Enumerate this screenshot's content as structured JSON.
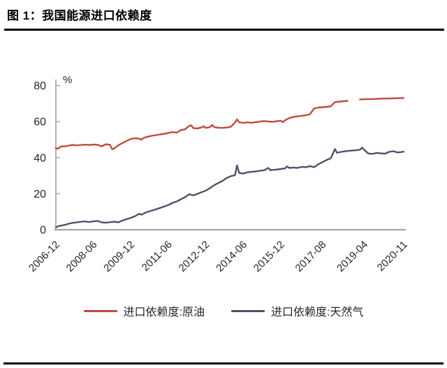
{
  "header": {
    "title": "图 1：我国能源进口依赖度"
  },
  "chart_data": {
    "type": "line",
    "title": "图 1：我国能源进口依赖度",
    "unit_label": "%",
    "ylabel": "%",
    "xlabel": "",
    "ylim": [
      0,
      80
    ],
    "y_ticks": [
      0,
      20,
      40,
      60,
      80
    ],
    "x_range_months": [
      0,
      167
    ],
    "x_ticks": [
      {
        "label": "2006-12",
        "month": 0
      },
      {
        "label": "2008-06",
        "month": 18
      },
      {
        "label": "2009-12",
        "month": 36
      },
      {
        "label": "2011-06",
        "month": 54
      },
      {
        "label": "2012-12",
        "month": 72
      },
      {
        "label": "2014-06",
        "month": 90
      },
      {
        "label": "2015-12",
        "month": 108
      },
      {
        "label": "2017-08",
        "month": 128
      },
      {
        "label": "2019-04",
        "month": 148
      },
      {
        "label": "2020-11",
        "month": 167
      }
    ],
    "grid": false,
    "legend_position": "bottom",
    "axis_color": "#a6a6a6",
    "series": [
      {
        "key": "crude-oil",
        "name": "进口依赖度:原油",
        "color": "#bf4a3d",
        "points": [
          [
            0,
            45.3
          ],
          [
            1,
            44.9
          ],
          [
            2,
            45.9
          ],
          [
            3,
            46.3
          ],
          [
            4,
            46.2
          ],
          [
            6,
            46.6
          ],
          [
            8,
            47.1
          ],
          [
            10,
            46.8
          ],
          [
            12,
            47.0
          ],
          [
            14,
            47.2
          ],
          [
            16,
            47.0
          ],
          [
            18,
            47.3
          ],
          [
            20,
            47.1
          ],
          [
            22,
            46.3
          ],
          [
            24,
            47.4
          ],
          [
            26,
            47.1
          ],
          [
            27,
            44.7
          ],
          [
            28,
            45.1
          ],
          [
            30,
            46.9
          ],
          [
            32,
            48.1
          ],
          [
            34,
            49.3
          ],
          [
            36,
            50.4
          ],
          [
            38,
            50.8
          ],
          [
            40,
            50.5
          ],
          [
            41,
            49.9
          ],
          [
            42,
            50.9
          ],
          [
            44,
            51.6
          ],
          [
            46,
            52.1
          ],
          [
            48,
            52.5
          ],
          [
            50,
            52.9
          ],
          [
            52,
            53.2
          ],
          [
            54,
            53.7
          ],
          [
            56,
            54.2
          ],
          [
            58,
            53.8
          ],
          [
            60,
            55.3
          ],
          [
            62,
            55.7
          ],
          [
            64,
            57.6
          ],
          [
            65,
            57.9
          ],
          [
            66,
            56.4
          ],
          [
            68,
            56.2
          ],
          [
            70,
            56.8
          ],
          [
            71,
            57.4
          ],
          [
            72,
            56.5
          ],
          [
            74,
            56.9
          ],
          [
            75,
            58.1
          ],
          [
            76,
            57.0
          ],
          [
            78,
            56.6
          ],
          [
            80,
            56.5
          ],
          [
            82,
            56.7
          ],
          [
            84,
            57.1
          ],
          [
            86,
            59.5
          ],
          [
            87,
            61.2
          ],
          [
            88,
            59.6
          ],
          [
            90,
            59.3
          ],
          [
            92,
            59.6
          ],
          [
            94,
            59.4
          ],
          [
            96,
            59.7
          ],
          [
            98,
            60.0
          ],
          [
            100,
            60.3
          ],
          [
            102,
            60.1
          ],
          [
            104,
            59.8
          ],
          [
            106,
            60.2
          ],
          [
            108,
            60.4
          ],
          [
            109,
            59.7
          ],
          [
            110,
            60.7
          ],
          [
            112,
            61.9
          ],
          [
            114,
            62.6
          ],
          [
            116,
            62.9
          ],
          [
            118,
            63.2
          ],
          [
            120,
            63.5
          ],
          [
            122,
            64.1
          ],
          [
            124,
            67.3
          ],
          [
            126,
            67.8
          ],
          [
            128,
            68.0
          ],
          [
            130,
            68.2
          ],
          [
            132,
            68.5
          ],
          [
            134,
            70.8
          ],
          [
            136,
            71.1
          ],
          [
            138,
            71.3
          ],
          [
            140,
            71.5
          ],
          [
            142,
            null
          ],
          [
            144,
            null
          ],
          [
            146,
            72.3
          ],
          [
            148,
            72.4
          ],
          [
            150,
            72.5
          ],
          [
            152,
            72.5
          ],
          [
            154,
            72.6
          ],
          [
            156,
            72.7
          ],
          [
            158,
            72.8
          ],
          [
            160,
            72.8
          ],
          [
            162,
            72.9
          ],
          [
            164,
            73.0
          ],
          [
            166,
            73.0
          ],
          [
            167,
            73.1
          ]
        ]
      },
      {
        "key": "natural-gas",
        "name": "进口依赖度:天然气",
        "color": "#4d5469",
        "points": [
          [
            0,
            1.4
          ],
          [
            2,
            2.2
          ],
          [
            4,
            2.6
          ],
          [
            6,
            3.3
          ],
          [
            8,
            3.8
          ],
          [
            10,
            4.1
          ],
          [
            12,
            4.4
          ],
          [
            14,
            4.6
          ],
          [
            16,
            4.3
          ],
          [
            18,
            4.7
          ],
          [
            20,
            4.9
          ],
          [
            22,
            4.1
          ],
          [
            24,
            3.9
          ],
          [
            26,
            4.2
          ],
          [
            28,
            4.5
          ],
          [
            30,
            4.1
          ],
          [
            32,
            5.1
          ],
          [
            34,
            5.9
          ],
          [
            36,
            6.6
          ],
          [
            38,
            7.5
          ],
          [
            40,
            8.9
          ],
          [
            41,
            8.3
          ],
          [
            42,
            8.9
          ],
          [
            44,
            9.9
          ],
          [
            46,
            10.6
          ],
          [
            48,
            11.3
          ],
          [
            50,
            12.1
          ],
          [
            52,
            12.9
          ],
          [
            54,
            13.7
          ],
          [
            56,
            14.9
          ],
          [
            58,
            15.7
          ],
          [
            60,
            16.9
          ],
          [
            62,
            18.1
          ],
          [
            64,
            19.7
          ],
          [
            66,
            19.1
          ],
          [
            68,
            19.9
          ],
          [
            70,
            20.9
          ],
          [
            72,
            21.7
          ],
          [
            74,
            23.1
          ],
          [
            76,
            24.7
          ],
          [
            78,
            25.9
          ],
          [
            80,
            27.1
          ],
          [
            82,
            28.7
          ],
          [
            84,
            29.7
          ],
          [
            86,
            30.3
          ],
          [
            87,
            35.7
          ],
          [
            88,
            31.5
          ],
          [
            90,
            31.2
          ],
          [
            92,
            31.9
          ],
          [
            94,
            32.1
          ],
          [
            96,
            32.4
          ],
          [
            98,
            32.7
          ],
          [
            100,
            33.0
          ],
          [
            102,
            34.3
          ],
          [
            103,
            33.0
          ],
          [
            104,
            33.2
          ],
          [
            106,
            33.4
          ],
          [
            108,
            33.7
          ],
          [
            110,
            34.0
          ],
          [
            111,
            35.1
          ],
          [
            112,
            34.3
          ],
          [
            114,
            34.5
          ],
          [
            116,
            34.3
          ],
          [
            118,
            34.9
          ],
          [
            120,
            34.7
          ],
          [
            122,
            35.3
          ],
          [
            124,
            34.7
          ],
          [
            126,
            36.3
          ],
          [
            128,
            37.5
          ],
          [
            130,
            38.7
          ],
          [
            132,
            39.7
          ],
          [
            134,
            44.8
          ],
          [
            135,
            42.7
          ],
          [
            136,
            43.0
          ],
          [
            138,
            43.4
          ],
          [
            140,
            43.7
          ],
          [
            142,
            43.9
          ],
          [
            144,
            44.1
          ],
          [
            146,
            44.4
          ],
          [
            147,
            45.6
          ],
          [
            148,
            44.4
          ],
          [
            150,
            42.3
          ],
          [
            152,
            42.1
          ],
          [
            154,
            42.6
          ],
          [
            156,
            42.4
          ],
          [
            158,
            42.2
          ],
          [
            160,
            43.2
          ],
          [
            162,
            43.6
          ],
          [
            164,
            42.9
          ],
          [
            166,
            43.1
          ],
          [
            167,
            43.3
          ]
        ]
      }
    ]
  }
}
